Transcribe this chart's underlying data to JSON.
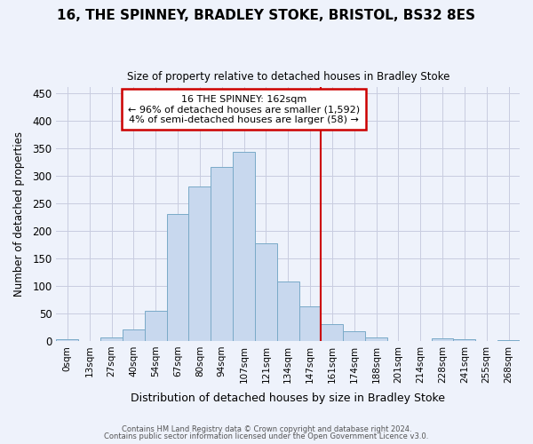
{
  "title": "16, THE SPINNEY, BRADLEY STOKE, BRISTOL, BS32 8ES",
  "subtitle": "Size of property relative to detached houses in Bradley Stoke",
  "xlabel": "Distribution of detached houses by size in Bradley Stoke",
  "ylabel": "Number of detached properties",
  "bar_color": "#c8d8ee",
  "bar_edge_color": "#7aaac8",
  "background_color": "#eef2fb",
  "grid_color": "#c8cce0",
  "vline_color": "#cc0000",
  "annotation_title": "16 THE SPINNEY: 162sqm",
  "annotation_line1": "← 96% of detached houses are smaller (1,592)",
  "annotation_line2": "4% of semi-detached houses are larger (58) →",
  "categories": [
    "0sqm",
    "13sqm",
    "27sqm",
    "40sqm",
    "54sqm",
    "67sqm",
    "80sqm",
    "94sqm",
    "107sqm",
    "121sqm",
    "134sqm",
    "147sqm",
    "161sqm",
    "174sqm",
    "188sqm",
    "201sqm",
    "214sqm",
    "228sqm",
    "241sqm",
    "255sqm",
    "268sqm"
  ],
  "values": [
    3,
    0,
    6,
    20,
    54,
    230,
    280,
    315,
    343,
    177,
    108,
    63,
    31,
    17,
    7,
    0,
    0,
    5,
    3,
    0,
    2
  ],
  "ylim": [
    0,
    460
  ],
  "yticks": [
    0,
    50,
    100,
    150,
    200,
    250,
    300,
    350,
    400,
    450
  ],
  "vline_idx": 12,
  "footer_line1": "Contains HM Land Registry data © Crown copyright and database right 2024.",
  "footer_line2": "Contains public sector information licensed under the Open Government Licence v3.0."
}
